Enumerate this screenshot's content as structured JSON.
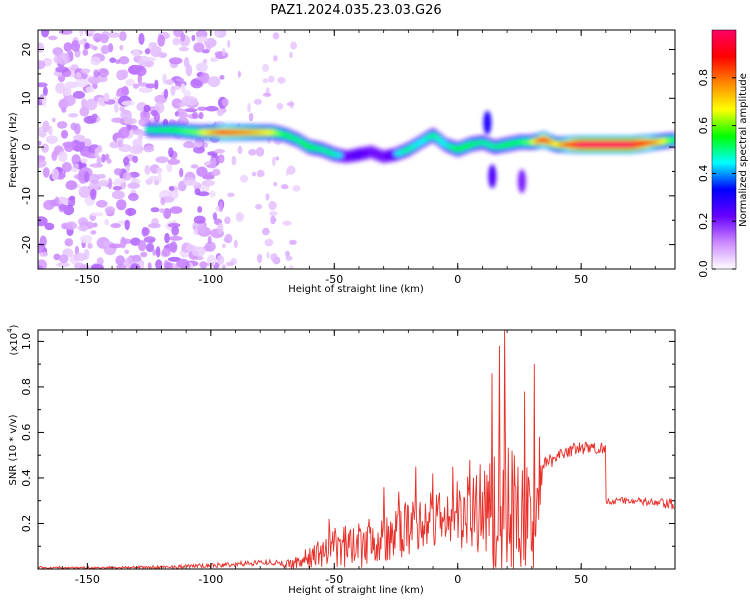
{
  "title": "PAZ1.2024.035.23.03.G26",
  "chart_data": [
    {
      "type": "heatmap",
      "xlabel": "Height of straight line (km)",
      "ylabel": "Frequency (Hz)",
      "xlim": [
        -170,
        88
      ],
      "ylim": [
        -25,
        24
      ],
      "xticks": [
        -150,
        -100,
        -50,
        0,
        50
      ],
      "yticks": [
        -20,
        -10,
        0,
        10,
        20
      ],
      "colorbar": {
        "label": "Normalized spectral amplitude",
        "range": [
          0,
          1
        ],
        "ticks": [
          "0.0",
          "0.2",
          "0.4",
          "0.6",
          "0.8"
        ],
        "colors": [
          "#ffffff",
          "#cc88ff",
          "#6600ff",
          "#0000ff",
          "#00ffff",
          "#00ff00",
          "#ffff00",
          "#ff8800",
          "#ff0000",
          "#ff0066"
        ]
      },
      "ridge": {
        "x": [
          -125,
          -115,
          -105,
          -95,
          -85,
          -75,
          -70,
          -65,
          -60,
          -55,
          -50,
          -45,
          -40,
          -35,
          -30,
          -25,
          -20,
          -15,
          -10,
          -5,
          0,
          5,
          10,
          15,
          20,
          25,
          30,
          35,
          40,
          50,
          60,
          70,
          80,
          88
        ],
        "y": [
          3.5,
          3.5,
          3,
          3,
          3,
          3,
          2.5,
          1.5,
          0,
          -0.5,
          -1.5,
          -2,
          -1.5,
          -1,
          -2,
          -1.5,
          -0.5,
          1,
          2.5,
          0.5,
          -0.5,
          0.5,
          1,
          0,
          0.5,
          1,
          1,
          1.5,
          0.5,
          0.5,
          0.5,
          0.5,
          1,
          1.5
        ],
        "amp": [
          0.45,
          0.5,
          0.55,
          0.75,
          0.7,
          0.6,
          0.5,
          0.45,
          0.5,
          0.45,
          0.45,
          0.35,
          0.4,
          0.35,
          0.35,
          0.4,
          0.45,
          0.4,
          0.45,
          0.4,
          0.5,
          0.5,
          0.45,
          0.45,
          0.5,
          0.5,
          0.55,
          0.8,
          0.6,
          0.92,
          0.92,
          0.92,
          0.7,
          0.5
        ]
      }
    },
    {
      "type": "line",
      "xlabel": "Height of straight line (km)",
      "ylabel": "SNR (10 * v/v)",
      "yscale_label": "(x10",
      "yscale_exp": "4",
      "yscale_close": ")",
      "xlim": [
        -170,
        88
      ],
      "ylim": [
        0,
        1.05
      ],
      "xticks": [
        -150,
        -100,
        -50,
        0,
        50
      ],
      "yticks": [
        0.2,
        0.4,
        0.6,
        0.8,
        1.0
      ],
      "ytick_labels": [
        "0.2",
        "0.4",
        "0.6",
        "0.8",
        "1.0"
      ],
      "color": "#e8302a",
      "envelope": {
        "x": [
          -170,
          -150,
          -120,
          -100,
          -90,
          -80,
          -75,
          -70,
          -65,
          -60,
          -55,
          -50,
          -45,
          -40,
          -35,
          -30,
          -25,
          -20,
          -15,
          -10,
          -5,
          0,
          5,
          10,
          15,
          17,
          20,
          25,
          30,
          35,
          40,
          45,
          50,
          55,
          59.9,
          60.1,
          70,
          80,
          88
        ],
        "base": [
          0.005,
          0.005,
          0.008,
          0.015,
          0.02,
          0.03,
          0.03,
          0.02,
          0.03,
          0.05,
          0.07,
          0.08,
          0.1,
          0.12,
          0.14,
          0.12,
          0.15,
          0.18,
          0.2,
          0.22,
          0.22,
          0.24,
          0.24,
          0.26,
          0.22,
          0.25,
          0.22,
          0.2,
          0.15,
          0.45,
          0.5,
          0.52,
          0.53,
          0.53,
          0.53,
          0.3,
          0.3,
          0.29,
          0.28
        ],
        "noise": [
          0.004,
          0.004,
          0.006,
          0.01,
          0.012,
          0.012,
          0.012,
          0.015,
          0.03,
          0.05,
          0.08,
          0.1,
          0.1,
          0.12,
          0.12,
          0.12,
          0.12,
          0.12,
          0.12,
          0.14,
          0.14,
          0.15,
          0.2,
          0.22,
          0.3,
          0.35,
          0.35,
          0.3,
          0.3,
          0.04,
          0.03,
          0.03,
          0.03,
          0.03,
          0.03,
          0.015,
          0.015,
          0.02,
          0.03
        ]
      },
      "spikes": [
        {
          "x": -52,
          "y": 0.22
        },
        {
          "x": -40,
          "y": 0.2
        },
        {
          "x": -36,
          "y": 0.22
        },
        {
          "x": -30,
          "y": 0.36
        },
        {
          "x": -24,
          "y": 0.34
        },
        {
          "x": -17,
          "y": 0.45
        },
        {
          "x": -10,
          "y": 0.42
        },
        {
          "x": -2,
          "y": 0.45
        },
        {
          "x": 5,
          "y": 0.48
        },
        {
          "x": 9,
          "y": 0.46
        },
        {
          "x": 14,
          "y": 0.86
        },
        {
          "x": 17,
          "y": 0.98
        },
        {
          "x": 19,
          "y": 1.05
        },
        {
          "x": 23,
          "y": 0.5
        },
        {
          "x": 27,
          "y": 0.78
        },
        {
          "x": 31,
          "y": 0.9
        },
        {
          "x": 33,
          "y": 0.58
        }
      ],
      "dips": [
        {
          "x": 15,
          "y": 0.02
        },
        {
          "x": 20,
          "y": 0.03
        },
        {
          "x": 30,
          "y": 0.08
        },
        {
          "x": -26,
          "y": 0.06
        }
      ]
    }
  ]
}
